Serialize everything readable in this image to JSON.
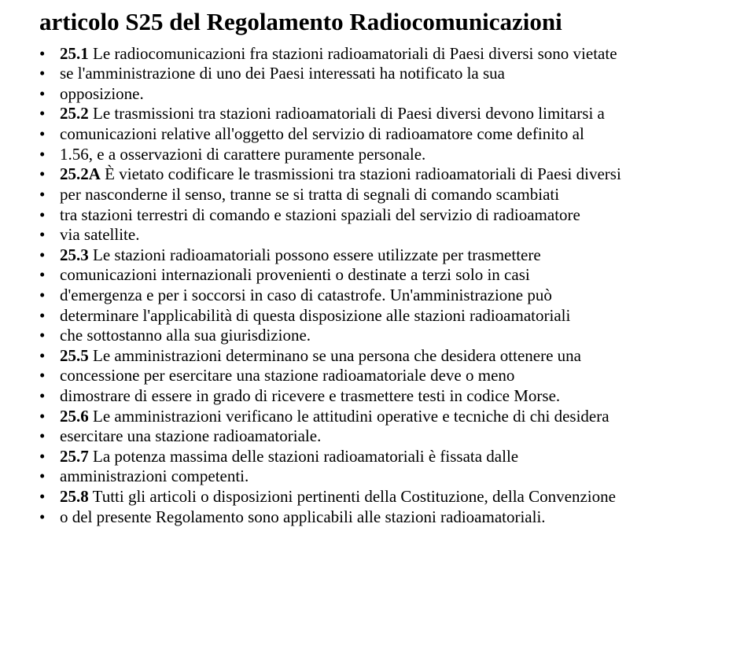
{
  "title": "articolo S25 del Regolamento Radiocomunicazioni",
  "lines": [
    [
      {
        "b": true,
        "t": "25.1"
      },
      {
        "b": false,
        "t": " Le radiocomunicazioni fra stazioni radioamatoriali di Paesi diversi sono vietate"
      }
    ],
    [
      {
        "b": false,
        "t": "se l'amministrazione di uno dei Paesi interessati ha notificato la sua"
      }
    ],
    [
      {
        "b": false,
        "t": "opposizione."
      }
    ],
    [
      {
        "b": true,
        "t": "25.2"
      },
      {
        "b": false,
        "t": " Le trasmissioni tra stazioni radioamatoriali di Paesi diversi devono limitarsi a"
      }
    ],
    [
      {
        "b": false,
        "t": "comunicazioni relative all'oggetto del servizio di radioamatore come definito al"
      }
    ],
    [
      {
        "b": false,
        "t": "1.56, e a osservazioni di carattere puramente personale."
      }
    ],
    [
      {
        "b": true,
        "t": "25.2A"
      },
      {
        "b": false,
        "t": " È vietato codificare le trasmissioni tra stazioni radioamatoriali di Paesi diversi"
      }
    ],
    [
      {
        "b": false,
        "t": "per nasconderne il senso, tranne se si tratta di segnali di comando scambiati"
      }
    ],
    [
      {
        "b": false,
        "t": "tra stazioni terrestri di comando e stazioni spaziali del servizio di radioamatore"
      }
    ],
    [
      {
        "b": false,
        "t": "via satellite."
      }
    ],
    [
      {
        "b": true,
        "t": "25.3"
      },
      {
        "b": false,
        "t": " Le stazioni radioamatoriali possono essere utilizzate per trasmettere"
      }
    ],
    [
      {
        "b": false,
        "t": "comunicazioni internazionali provenienti o destinate a terzi solo in casi"
      }
    ],
    [
      {
        "b": false,
        "t": "d'emergenza e per i soccorsi in caso di catastrofe. Un'amministrazione può"
      }
    ],
    [
      {
        "b": false,
        "t": "determinare l'applicabilità di questa disposizione alle stazioni radioamatoriali"
      }
    ],
    [
      {
        "b": false,
        "t": "che sottostanno alla sua giurisdizione."
      }
    ],
    [
      {
        "b": true,
        "t": "25.5"
      },
      {
        "b": false,
        "t": " Le amministrazioni determinano se una persona che desidera ottenere una"
      }
    ],
    [
      {
        "b": false,
        "t": "concessione per esercitare una stazione radioamatoriale deve o meno"
      }
    ],
    [
      {
        "b": false,
        "t": "dimostrare di essere in grado di ricevere e trasmettere testi in codice Morse."
      }
    ],
    [
      {
        "b": true,
        "t": "25.6"
      },
      {
        "b": false,
        "t": " Le amministrazioni verificano le attitudini operative e tecniche di chi desidera"
      }
    ],
    [
      {
        "b": false,
        "t": "esercitare una stazione radioamatoriale."
      }
    ],
    [
      {
        "b": true,
        "t": "25.7"
      },
      {
        "b": false,
        "t": " La potenza massima delle stazioni radioamatoriali è fissata dalle"
      }
    ],
    [
      {
        "b": false,
        "t": "amministrazioni competenti."
      }
    ],
    [
      {
        "b": true,
        "t": "25.8"
      },
      {
        "b": false,
        "t": " Tutti gli articoli o disposizioni pertinenti della Costituzione, della Convenzione"
      }
    ],
    [
      {
        "b": false,
        "t": "o del presente Regolamento sono applicabili alle stazioni radioamatoriali."
      }
    ]
  ]
}
